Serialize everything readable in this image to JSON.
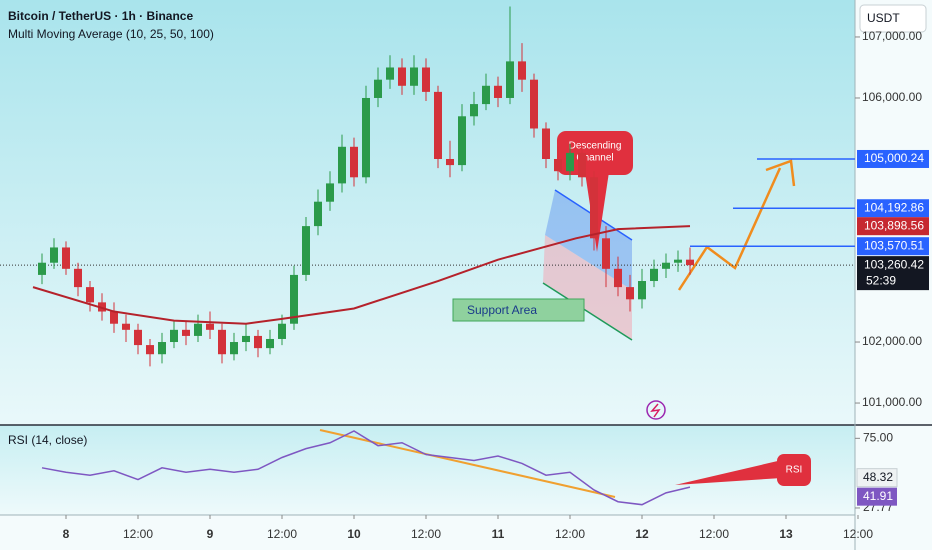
{
  "header": {
    "title": "Bitcoin / TetherUS · 1h · Binance",
    "indicator": "Multi Moving Average (10, 25, 50, 100)",
    "currency": "USDT"
  },
  "chart_data": {
    "type": "candlestick",
    "xlim": [
      -5.5,
      137
    ],
    "ylim": [
      100640,
      107606
    ],
    "x": [
      -4,
      -2,
      0,
      2,
      4,
      6,
      8,
      10,
      12,
      14,
      16,
      18,
      20,
      22,
      24,
      26,
      28,
      30,
      32,
      34,
      36,
      38,
      40,
      42,
      44,
      46,
      48,
      50,
      52,
      54,
      56,
      58,
      60,
      62,
      64,
      66,
      68,
      70,
      72,
      74,
      76,
      78,
      80,
      82,
      84,
      86,
      88,
      90,
      92,
      94,
      96,
      98,
      100,
      102,
      104
    ],
    "open": [
      103100,
      103300,
      103550,
      103200,
      102900,
      102650,
      102500,
      102300,
      102200,
      101950,
      101800,
      102000,
      102200,
      102100,
      102300,
      102200,
      101800,
      102000,
      102100,
      101900,
      102050,
      102300,
      103100,
      103900,
      104300,
      104600,
      105200,
      104700,
      106000,
      106300,
      106500,
      106200,
      106500,
      106100,
      105000,
      104900,
      105700,
      105900,
      106200,
      106000,
      106600,
      106300,
      105500,
      105000,
      104800,
      105100,
      104700,
      103700,
      103200,
      102900,
      102700,
      103000,
      103200,
      103300,
      103350
    ],
    "high": [
      103450,
      103700,
      103650,
      103300,
      103000,
      102800,
      102650,
      102450,
      102300,
      102050,
      102150,
      102350,
      102350,
      102450,
      102500,
      102300,
      102150,
      102300,
      102200,
      102200,
      102450,
      103250,
      104050,
      104500,
      104800,
      105400,
      105350,
      106200,
      106500,
      106700,
      106650,
      106700,
      106650,
      106200,
      105300,
      105900,
      106100,
      106400,
      106350,
      107500,
      106900,
      106400,
      105600,
      105200,
      105250,
      105200,
      104800,
      103900,
      103400,
      103100,
      103200,
      103350,
      103450,
      103500,
      103550
    ],
    "low": [
      102950,
      103200,
      103100,
      102750,
      102500,
      102350,
      102150,
      102000,
      101800,
      101600,
      101650,
      101900,
      101950,
      102000,
      102050,
      101650,
      101700,
      101850,
      101750,
      101800,
      101950,
      102200,
      103000,
      103750,
      104150,
      104450,
      104550,
      104600,
      105850,
      106150,
      106050,
      106050,
      105950,
      104850,
      104700,
      104800,
      105550,
      105800,
      105850,
      105900,
      106100,
      105350,
      104850,
      104650,
      104650,
      104550,
      103500,
      102900,
      102750,
      102500,
      102550,
      102900,
      103050,
      103150,
      103100
    ],
    "close": [
      103300,
      103550,
      103200,
      102900,
      102650,
      102500,
      102300,
      102200,
      101950,
      101800,
      102000,
      102200,
      102100,
      102300,
      102200,
      101800,
      102000,
      102100,
      101900,
      102050,
      102300,
      103100,
      103900,
      104300,
      104600,
      105200,
      104700,
      106000,
      106300,
      106500,
      106200,
      106500,
      106100,
      105000,
      104900,
      105700,
      105900,
      106200,
      106000,
      106600,
      106300,
      105500,
      105000,
      104800,
      105100,
      104700,
      103700,
      103200,
      102900,
      102700,
      103000,
      103200,
      103300,
      103350,
      103260
    ],
    "colors": {
      "up": "#2b9a4a",
      "down": "#d3323a"
    },
    "xticks": [
      {
        "value": 0,
        "label": "8"
      },
      {
        "value": 12,
        "label": "12:00"
      },
      {
        "value": 24,
        "label": "9"
      },
      {
        "value": 36,
        "label": "12:00"
      },
      {
        "value": 48,
        "label": "10"
      },
      {
        "value": 60,
        "label": "12:00"
      },
      {
        "value": 72,
        "label": "11"
      },
      {
        "value": 84,
        "label": "12:00"
      },
      {
        "value": 96,
        "label": "12"
      },
      {
        "value": 108,
        "label": "12:00"
      },
      {
        "value": 120,
        "label": "13"
      },
      {
        "value": 132,
        "label": "12:00"
      }
    ],
    "yticks": [
      {
        "value": 107000,
        "label": "107,000.00"
      },
      {
        "value": 106000,
        "label": "106,000.00"
      },
      {
        "value": 102000,
        "label": "102,000.00"
      },
      {
        "value": 101000,
        "label": "101,000.00"
      }
    ],
    "ma": {
      "x": [
        -5.5,
        8,
        18,
        30,
        36,
        48,
        62,
        72,
        85,
        92,
        104
      ],
      "values": [
        102900,
        102500,
        102350,
        102300,
        102380,
        102550,
        103000,
        103350,
        103700,
        103850,
        103900
      ],
      "color": "#b5222b"
    },
    "levels": [
      {
        "value": 105000.24,
        "label": "105,000.24",
        "color": "#2962ff"
      },
      {
        "value": 104192.86,
        "label": "104,192.86",
        "color": "#2962ff"
      },
      {
        "value": 103898.56,
        "label": "103,898.56",
        "color": "#c62830"
      },
      {
        "value": 103570.51,
        "label": "103,570.51",
        "color": "#2962ff"
      }
    ],
    "current": {
      "value": 103260.42,
      "label": "103,260.42",
      "countdown": "52:39"
    },
    "annotations": {
      "channel": [
        "Descending",
        "Channel"
      ],
      "support": "Support Area"
    },
    "rsi": {
      "title": "RSI (14, close)",
      "ylim": [
        23,
        82
      ],
      "yticks": [
        {
          "value": 75,
          "label": "75.00"
        },
        27.77
      ],
      "ma_value": 48.32,
      "tag": "RSI",
      "color": "#7e57c2",
      "x": [
        -4,
        0,
        4,
        8,
        12,
        16,
        20,
        24,
        28,
        32,
        36,
        40,
        44,
        48,
        52,
        56,
        60,
        64,
        68,
        72,
        76,
        80,
        84,
        88,
        92,
        96,
        100,
        104
      ],
      "values": [
        55,
        52,
        50,
        53,
        47,
        55,
        52,
        54,
        52,
        54,
        62,
        68,
        72,
        80,
        70,
        72,
        64,
        62,
        60,
        63,
        58,
        50,
        52,
        40,
        32,
        30,
        38,
        41.91
      ]
    }
  }
}
